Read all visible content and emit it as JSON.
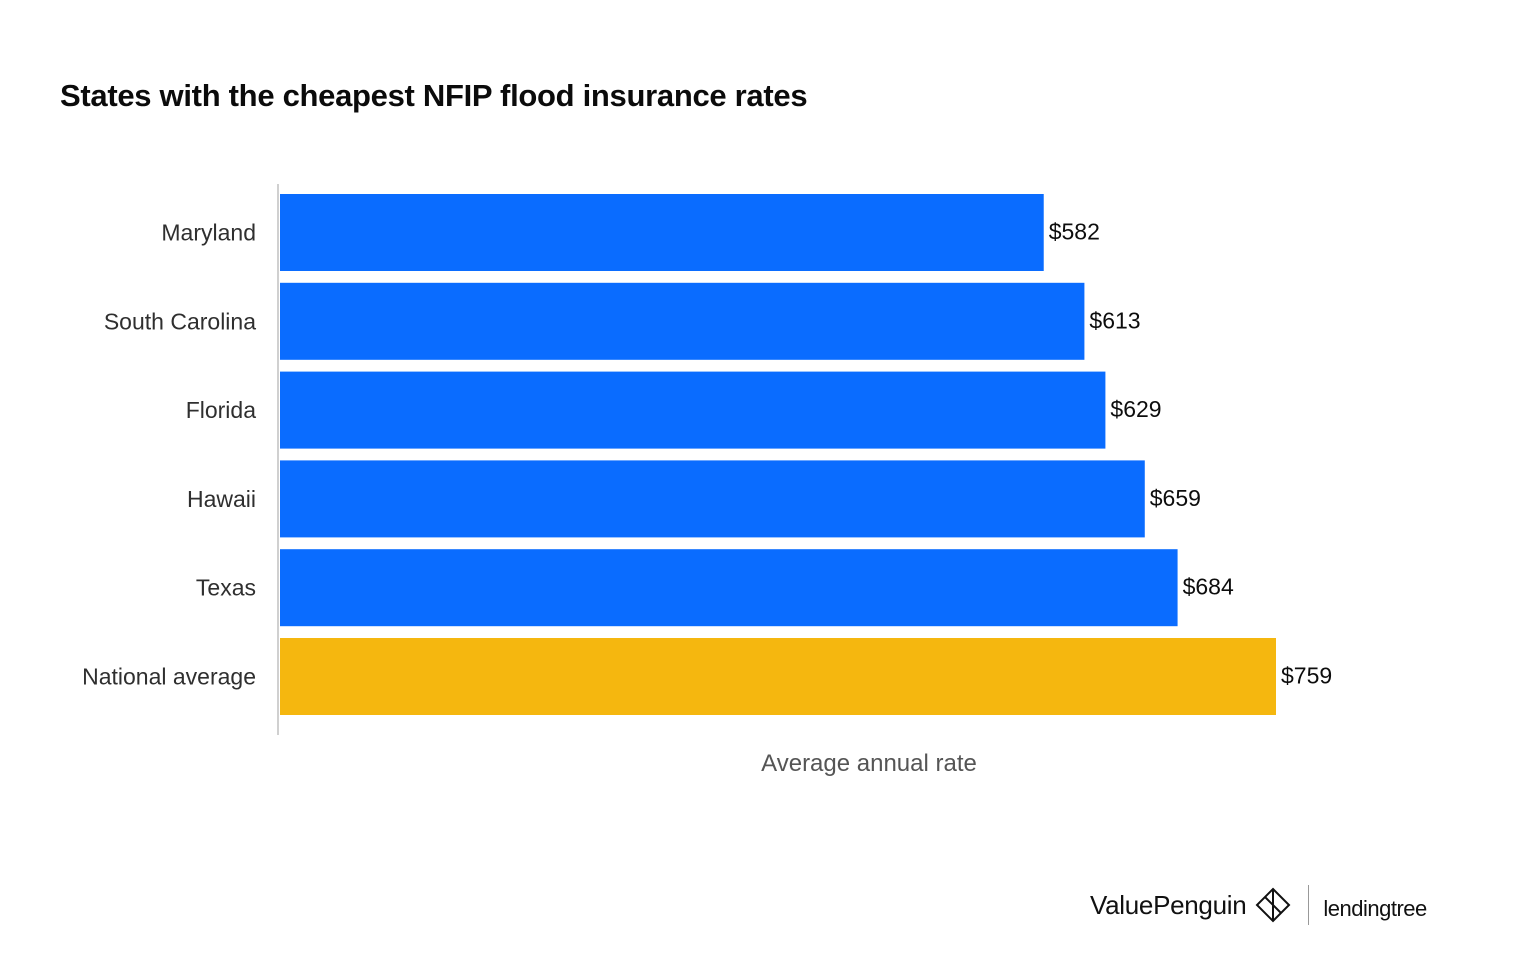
{
  "chart_data": {
    "type": "bar",
    "orientation": "horizontal",
    "title": "States with the cheapest NFIP flood insurance rates",
    "categories": [
      "Maryland",
      "South Carolina",
      "Florida",
      "Hawaii",
      "Texas",
      "National average"
    ],
    "values": [
      582,
      613,
      629,
      659,
      684,
      759
    ],
    "value_labels": [
      "$582",
      "$613",
      "$629",
      "$659",
      "$684",
      "$759"
    ],
    "xlabel": "Average annual rate",
    "ylabel": "",
    "xlim": [
      0,
      759
    ],
    "colors": [
      "#0a6cff",
      "#0a6cff",
      "#0a6cff",
      "#0a6cff",
      "#0a6cff",
      "#f5b70f"
    ],
    "grid": false,
    "legend": "none"
  },
  "branding": {
    "valuepenguin": "ValuePenguin",
    "lendingtree": "lendingtree"
  },
  "colors": {
    "bar_primary": "#0a6cff",
    "bar_highlight": "#f5b70f",
    "axis_line": "#d0d0d0"
  }
}
